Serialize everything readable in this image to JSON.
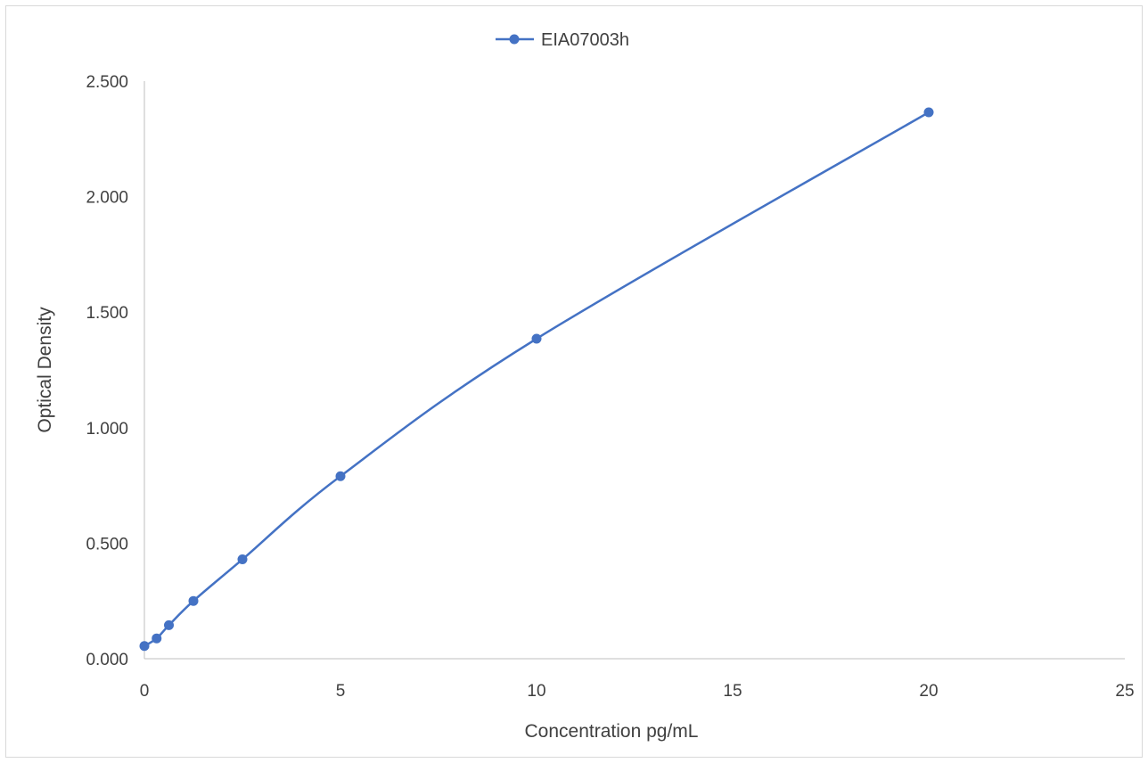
{
  "chart_data": {
    "type": "scatter",
    "title": "",
    "xlabel": "Concentration pg/mL",
    "ylabel": "Optical Density",
    "xlim": [
      0,
      25
    ],
    "ylim": [
      0,
      2.5
    ],
    "x_ticks": [
      "0",
      "5",
      "10",
      "15",
      "20",
      "25"
    ],
    "y_ticks": [
      "0.000",
      "0.500",
      "1.000",
      "1.500",
      "2.000",
      "2.500"
    ],
    "grid": false,
    "legend_position": "top-center",
    "series": [
      {
        "name": "EIA07003h",
        "color": "#4472c4",
        "marker": "circle",
        "line": "smooth",
        "x": [
          0,
          0.3125,
          0.625,
          1.25,
          2.5,
          5,
          10,
          20
        ],
        "y": [
          0.055,
          0.088,
          0.145,
          0.25,
          0.43,
          0.79,
          1.385,
          2.365
        ]
      }
    ]
  }
}
